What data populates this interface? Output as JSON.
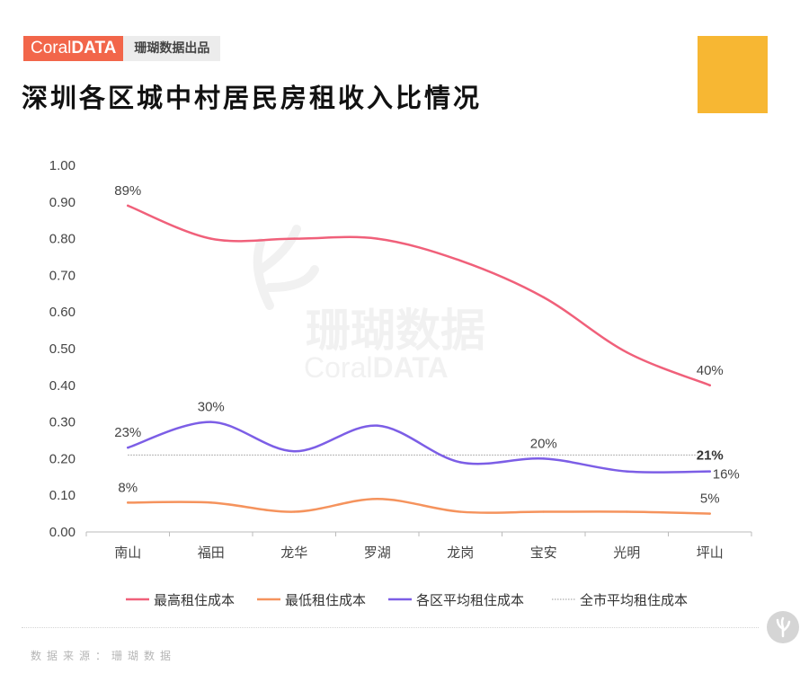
{
  "brand": {
    "logo_light": "Coral",
    "logo_bold": "DATA",
    "tagline": "珊瑚数据出品"
  },
  "title": "深圳各区城中村居民房租收入比情况",
  "watermark": {
    "line1": "珊瑚数据",
    "line2_light": "Coral",
    "line2_bold": "DATA"
  },
  "source": "数据来源：珊瑚数据",
  "colors": {
    "brand": "#f2664a",
    "qr": "#f7b733"
  },
  "chart_data": {
    "type": "line",
    "categories": [
      "南山",
      "福田",
      "龙华",
      "罗湖",
      "龙岗",
      "宝安",
      "光明",
      "坪山"
    ],
    "ylim": [
      0,
      1.0
    ],
    "yticks": [
      "0.00",
      "0.10",
      "0.20",
      "0.30",
      "0.40",
      "0.50",
      "0.60",
      "0.70",
      "0.80",
      "0.90",
      "1.00"
    ],
    "series": [
      {
        "name": "最高租住成本",
        "color": "#f0607a",
        "values": [
          0.89,
          0.8,
          0.8,
          0.8,
          0.74,
          0.64,
          0.49,
          0.4
        ],
        "labels": [
          {
            "index": 0,
            "text": "89%"
          },
          {
            "index": 7,
            "text": "40%"
          }
        ]
      },
      {
        "name": "最低租住成本",
        "color": "#f5935d",
        "values": [
          0.08,
          0.08,
          0.055,
          0.09,
          0.055,
          0.055,
          0.055,
          0.05
        ],
        "labels": [
          {
            "index": 0,
            "text": "8%"
          },
          {
            "index": 7,
            "text": "5%"
          }
        ]
      },
      {
        "name": "各区平均租住成本",
        "color": "#7c5ee6",
        "values": [
          0.23,
          0.3,
          0.22,
          0.29,
          0.19,
          0.2,
          0.165,
          0.165
        ],
        "labels": [
          {
            "index": 0,
            "text": "23%"
          },
          {
            "index": 1,
            "text": "30%"
          },
          {
            "index": 5,
            "text": "20%"
          },
          {
            "index": 7,
            "text": "16%"
          }
        ]
      }
    ],
    "reference": {
      "name": "全市平均租住成本",
      "value": 0.21,
      "label": "21%",
      "color": "#999999"
    }
  }
}
